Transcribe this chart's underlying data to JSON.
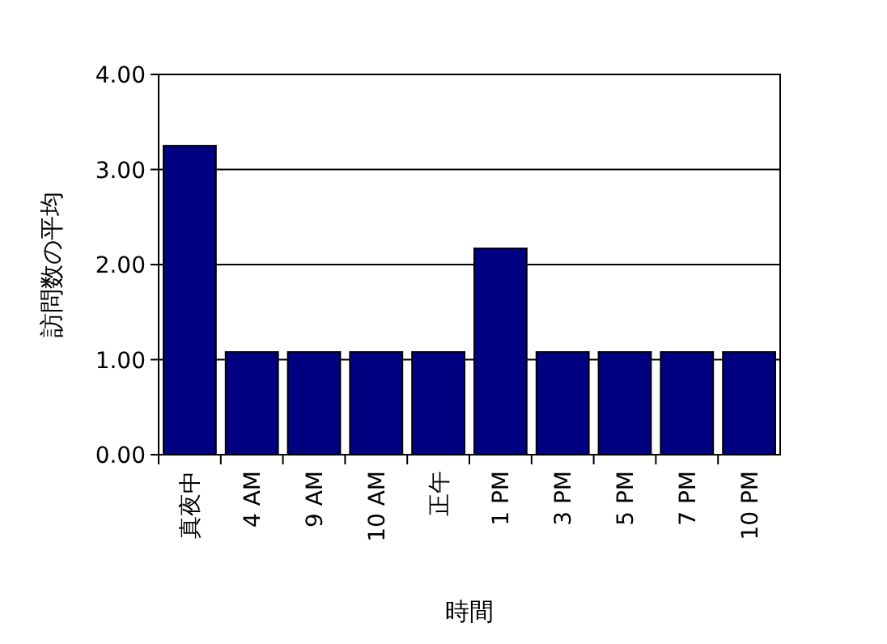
{
  "chart_data": {
    "type": "bar",
    "xlabel": "時間",
    "ylabel": "訪問数の平均",
    "categories": [
      "真夜中",
      "4 AM",
      "9 AM",
      "10 AM",
      "正午",
      "1 PM",
      "3 PM",
      "5 PM",
      "7 PM",
      "10 PM"
    ],
    "values": [
      3.25,
      1.08,
      1.08,
      1.08,
      1.08,
      2.17,
      1.08,
      1.08,
      1.08,
      1.08
    ],
    "color": "#000080",
    "ylim": [
      0,
      4
    ],
    "yticks": [
      {
        "value": 0,
        "label": "0.00"
      },
      {
        "value": 1,
        "label": "1.00"
      },
      {
        "value": 2,
        "label": "2.00"
      },
      {
        "value": 3,
        "label": "3.00"
      },
      {
        "value": 4,
        "label": "4.00"
      }
    ],
    "grid": "y"
  }
}
